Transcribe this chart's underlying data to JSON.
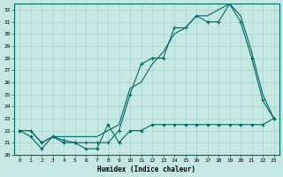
{
  "xlabel": "Humidex (Indice chaleur)",
  "xlim": [
    -0.5,
    23.5
  ],
  "ylim": [
    20,
    32.5
  ],
  "yticks": [
    20,
    21,
    22,
    23,
    24,
    25,
    26,
    27,
    28,
    29,
    30,
    31,
    32
  ],
  "xticks": [
    0,
    1,
    2,
    3,
    4,
    5,
    6,
    7,
    8,
    9,
    10,
    11,
    12,
    13,
    14,
    15,
    16,
    17,
    18,
    19,
    20,
    21,
    22,
    23
  ],
  "bg_color": "#c5e8e2",
  "grid_color": "#a8d4cc",
  "line_color": "#006868",
  "line1_y": [
    22.0,
    21.5,
    20.5,
    21.5,
    21.0,
    21.0,
    20.5,
    20.5,
    22.5,
    21.0,
    22.0,
    22.0,
    22.5,
    22.5,
    22.5,
    22.5,
    22.5,
    22.5,
    22.5,
    22.5,
    22.5,
    22.5,
    22.5,
    23.0
  ],
  "line2_y": [
    22.0,
    22.0,
    21.0,
    21.5,
    21.2,
    21.0,
    21.0,
    21.0,
    21.0,
    22.0,
    25.0,
    27.5,
    28.0,
    28.0,
    30.5,
    30.5,
    31.5,
    31.0,
    31.0,
    32.5,
    31.0,
    28.0,
    24.5,
    23.0
  ],
  "line3_y": [
    22.0,
    22.0,
    21.0,
    21.5,
    21.5,
    21.5,
    21.5,
    21.5,
    22.0,
    22.5,
    25.5,
    26.0,
    27.5,
    28.5,
    30.0,
    30.5,
    31.5,
    31.5,
    32.0,
    32.5,
    31.5,
    28.5,
    25.0,
    23.0
  ]
}
